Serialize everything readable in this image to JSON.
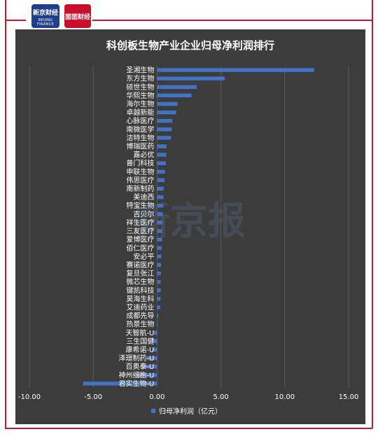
{
  "header": {
    "logo_left": {
      "title": "新京财经",
      "subtitle": "BEIJING FINANCE"
    },
    "logo_right": {
      "title": "面面财经"
    }
  },
  "watermark": "新京报",
  "colors": {
    "frame": "#c0182e",
    "chart_bg": "#3c3c3c",
    "bar": "#4472c4",
    "grid": "#5a5a5a"
  },
  "chart_data": {
    "type": "bar",
    "orientation": "horizontal",
    "title": "科创板生物产业企业归母净利润排行",
    "categories": [
      "圣湘生物",
      "东方生物",
      "硕世生物",
      "华熙生物",
      "海尔生物",
      "卓越新能",
      "心脉医疗",
      "南微医学",
      "洁特生物",
      "博瑞医药",
      "嘉必优",
      "普门科技",
      "申联生物",
      "伟思医疗",
      "南新制药",
      "美迪西",
      "特宝生物",
      "吉贝尔",
      "祥生医疗",
      "三友医疗",
      "爱博医疗",
      "佰仁医疗",
      "安必平",
      "赛诺医疗",
      "复旦张江",
      "微芯生物",
      "键凯科技",
      "昊海生科",
      "艾迪药业",
      "成都先导",
      "热景生物",
      "天智航-U",
      "三生国健",
      "康希诺-U",
      "泽璟制药-U",
      "百奥泰-U",
      "神州细胞-U",
      "君实生物-U"
    ],
    "series": [
      {
        "name": "归母净利润（亿元）",
        "values": [
          12.3,
          5.3,
          3.1,
          2.7,
          1.6,
          1.5,
          1.2,
          1.15,
          1.1,
          0.75,
          0.72,
          0.68,
          0.62,
          0.58,
          0.52,
          0.5,
          0.48,
          0.45,
          0.42,
          0.4,
          0.38,
          0.36,
          0.34,
          0.32,
          0.3,
          0.28,
          0.28,
          0.27,
          0.25,
          0.1,
          0.05,
          -0.25,
          -0.35,
          -0.4,
          -0.8,
          -1.2,
          -1.6,
          -5.8
        ]
      }
    ],
    "xlim": [
      -10,
      15
    ],
    "xticks": [
      "-10.00",
      "-5.00",
      "0.00",
      "5.00",
      "10.00",
      "15.00"
    ],
    "grid": true,
    "legend": "bottom-center"
  }
}
